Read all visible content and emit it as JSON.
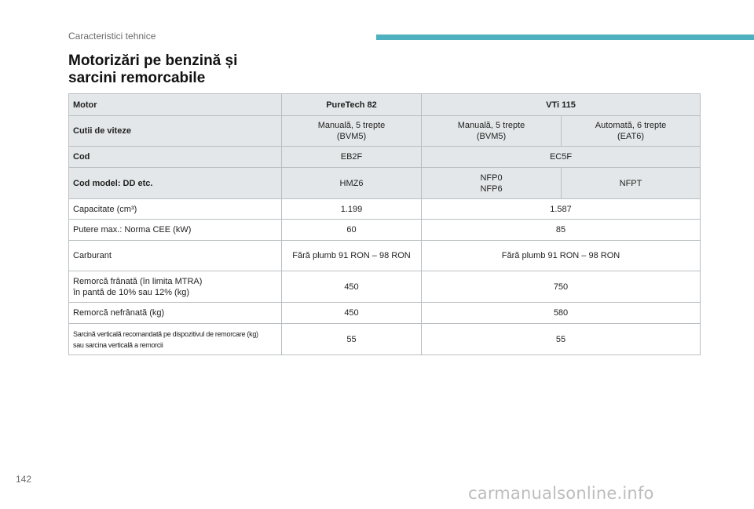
{
  "header": {
    "section": "Caracteristici tehnice",
    "accent_color": "#4fb0c0"
  },
  "title": {
    "line1": "Motorizări pe benzină și",
    "line2": "sarcini remorcabile"
  },
  "table": {
    "row_motor": {
      "label": "Motor",
      "col1": "PureTech 82",
      "col2": "VTi 115"
    },
    "row_gearbox": {
      "label": "Cutii de viteze",
      "c1": [
        "Manuală, 5 trepte",
        "(BVM5)"
      ],
      "c2": [
        "Manuală, 5 trepte",
        "(BVM5)"
      ],
      "c3": [
        "Automată, 6 trepte",
        "(EAT6)"
      ]
    },
    "row_code": {
      "label": "Cod",
      "col1": "EB2F",
      "col2": "EC5F"
    },
    "row_model": {
      "label": "Cod model: DD etc.",
      "c1": "HMZ6",
      "c2": [
        "NFP0",
        "NFP6"
      ],
      "c3": "NFPT"
    },
    "row_capacity": {
      "label": "Capacitate (cm³)",
      "col1": "1.199",
      "col2": "1.587"
    },
    "row_power": {
      "label": "Putere max.: Norma CEE (kW)",
      "col1": "60",
      "col2": "85"
    },
    "row_fuel": {
      "label": "Carburant",
      "col1": "Fără plumb 91 RON – 98 RON",
      "col2": "Fără plumb 91 RON – 98 RON"
    },
    "row_braked": {
      "label": [
        "Remorcă frânată (în limita MTRA)",
        "în pantă de 10% sau 12% (kg)"
      ],
      "col1": "450",
      "col2": "750"
    },
    "row_unbraked": {
      "label": "Remorcă nefrânată (kg)",
      "col1": "450",
      "col2": "580"
    },
    "row_vertical": {
      "label": [
        "Sarcină verticală recomandată pe dispozitivul de remorcare (kg)",
        "sau sarcina verticală a remorcii"
      ],
      "col1": "55",
      "col2": "55"
    }
  },
  "footer": {
    "page_number": "142",
    "watermark": "carmanualsonline.info"
  }
}
